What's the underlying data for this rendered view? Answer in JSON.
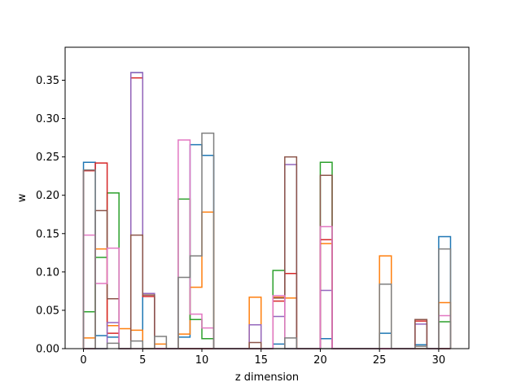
{
  "chart_data": {
    "type": "step-histogram",
    "xlabel": "z dimension",
    "ylabel": "w",
    "xlim": [
      -1.55,
      32.55
    ],
    "ylim": [
      0,
      0.393
    ],
    "xticks": [
      0,
      5,
      10,
      15,
      20,
      25,
      30
    ],
    "yticks": [
      0.0,
      0.05,
      0.1,
      0.15,
      0.2,
      0.25,
      0.3,
      0.35
    ],
    "ytick_labels": [
      "0.00",
      "0.05",
      "0.10",
      "0.15",
      "0.20",
      "0.25",
      "0.30",
      "0.35"
    ],
    "bins": [
      0,
      1,
      2,
      3,
      4,
      5,
      6,
      7,
      8,
      9,
      10,
      11,
      12,
      13,
      14,
      15,
      16,
      17,
      18,
      19,
      20,
      21,
      22,
      23,
      24,
      25,
      26,
      27,
      28,
      29,
      30,
      31
    ],
    "grid": false,
    "legend": "none",
    "series": [
      {
        "color": "#1f77b4",
        "values": [
          0.243,
          0.017,
          0.015,
          0.0,
          0.36,
          0.0,
          0.0,
          0.0,
          0.015,
          0.266,
          0.252,
          0.0,
          0.0,
          0.0,
          0.0,
          0.0,
          0.006,
          0.0,
          0.0,
          0.0,
          0.013,
          0.0,
          0.0,
          0.0,
          0.0,
          0.02,
          0.0,
          0.0,
          0.005,
          0.0,
          0.146
        ]
      },
      {
        "color": "#ff7f0e",
        "values": [
          0.014,
          0.13,
          0.03,
          0.026,
          0.024,
          0.0,
          0.006,
          0.0,
          0.019,
          0.08,
          0.178,
          0.0,
          0.0,
          0.0,
          0.067,
          0.0,
          0.067,
          0.066,
          0.0,
          0.0,
          0.137,
          0.0,
          0.0,
          0.0,
          0.0,
          0.121,
          0.0,
          0.0,
          0.0,
          0.0,
          0.06
        ]
      },
      {
        "color": "#2ca02c",
        "values": [
          0.048,
          0.119,
          0.203,
          0.0,
          0.0,
          0.0,
          0.0,
          0.0,
          0.195,
          0.038,
          0.013,
          0.0,
          0.0,
          0.0,
          0.0,
          0.0,
          0.102,
          0.0,
          0.0,
          0.0,
          0.243,
          0.0,
          0.0,
          0.0,
          0.0,
          0.0,
          0.0,
          0.0,
          0.0,
          0.0,
          0.035
        ]
      },
      {
        "color": "#d62728",
        "values": [
          0.232,
          0.242,
          0.02,
          0.0,
          0.353,
          0.068,
          0.0,
          0.0,
          0.0,
          0.0,
          0.0,
          0.0,
          0.0,
          0.0,
          0.0,
          0.0,
          0.062,
          0.098,
          0.0,
          0.0,
          0.142,
          0.0,
          0.0,
          0.0,
          0.0,
          0.0,
          0.0,
          0.0,
          0.036,
          0.0,
          0.0
        ]
      },
      {
        "color": "#9467bd",
        "values": [
          0.0,
          0.0,
          0.034,
          0.0,
          0.36,
          0.072,
          0.0,
          0.0,
          0.0,
          0.0,
          0.0,
          0.0,
          0.0,
          0.0,
          0.031,
          0.0,
          0.042,
          0.24,
          0.0,
          0.0,
          0.076,
          0.0,
          0.0,
          0.0,
          0.0,
          0.0,
          0.0,
          0.0,
          0.032,
          0.0,
          0.0
        ]
      },
      {
        "color": "#8c564b",
        "values": [
          0.0,
          0.18,
          0.065,
          0.0,
          0.148,
          0.07,
          0.0,
          0.0,
          0.0,
          0.0,
          0.0,
          0.0,
          0.0,
          0.0,
          0.008,
          0.0,
          0.066,
          0.25,
          0.0,
          0.0,
          0.226,
          0.0,
          0.0,
          0.0,
          0.0,
          0.0,
          0.0,
          0.0,
          0.038,
          0.0,
          0.0
        ]
      },
      {
        "color": "#e377c2",
        "values": [
          0.148,
          0.085,
          0.131,
          0.0,
          0.0,
          0.0,
          0.0,
          0.0,
          0.272,
          0.045,
          0.027,
          0.0,
          0.0,
          0.0,
          0.0,
          0.0,
          0.069,
          0.0,
          0.0,
          0.0,
          0.159,
          0.0,
          0.0,
          0.0,
          0.0,
          0.0,
          0.0,
          0.0,
          0.0,
          0.0,
          0.043
        ]
      },
      {
        "color": "#7f7f7f",
        "values": [
          0.233,
          0.0,
          0.007,
          0.0,
          0.01,
          0.0,
          0.016,
          0.0,
          0.093,
          0.121,
          0.281,
          0.0,
          0.0,
          0.0,
          0.0,
          0.0,
          0.0,
          0.014,
          0.0,
          0.0,
          0.0,
          0.0,
          0.0,
          0.0,
          0.0,
          0.084,
          0.0,
          0.0,
          0.003,
          0.0,
          0.13
        ]
      }
    ]
  }
}
